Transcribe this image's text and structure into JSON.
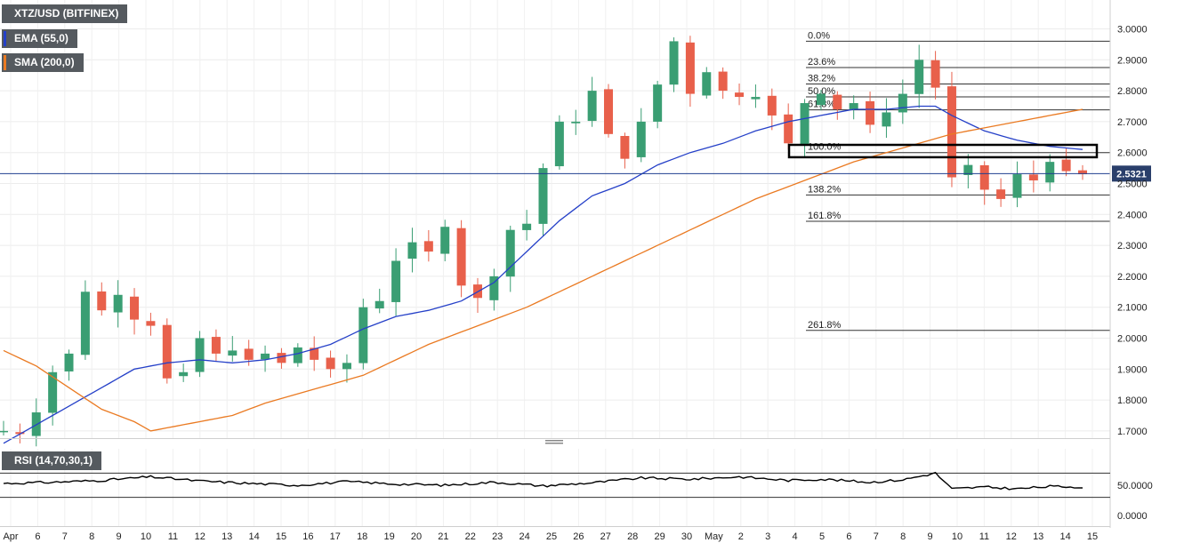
{
  "legends": {
    "symbol": "XTZ/USD (BITFINEX)",
    "ema": "EMA (55,0)",
    "sma": "SMA (200,0)",
    "rsi": "RSI (14,70,30,1)"
  },
  "colors": {
    "up": "#3a9e73",
    "down": "#e8604b",
    "ema": "#2540c8",
    "sma": "#ea7a22",
    "rsi": "#000000",
    "price_line": "#1f3f8f",
    "price_badge": "#2a3f6b"
  },
  "chart_data": [
    {
      "type": "candlestick",
      "title": "XTZ/USD (BITFINEX)",
      "ylim": [
        1.68,
        3.07
      ],
      "y_ticks": [
        "3.0000",
        "2.9000",
        "2.8000",
        "2.7000",
        "2.6000",
        "2.5000",
        "2.4000",
        "2.3000",
        "2.2000",
        "2.1000",
        "2.0000",
        "1.9000",
        "1.8000",
        "1.7000"
      ],
      "x_ticks": [
        "Apr",
        "6",
        "7",
        "8",
        "9",
        "10",
        "11",
        "12",
        "13",
        "14",
        "15",
        "16",
        "17",
        "18",
        "19",
        "20",
        "21",
        "22",
        "23",
        "24",
        "25",
        "26",
        "27",
        "28",
        "29",
        "30",
        "May",
        "2",
        "3",
        "4",
        "5",
        "6",
        "7",
        "8",
        "9",
        "10",
        "11",
        "12",
        "13",
        "14",
        "15"
      ],
      "current_price": "2.5321",
      "fib_levels": [
        {
          "label": "0.0%",
          "value": 2.96
        },
        {
          "label": "23.6%",
          "value": 2.875
        },
        {
          "label": "38.2%",
          "value": 2.822
        },
        {
          "label": "50.0%",
          "value": 2.78
        },
        {
          "label": "61.8%",
          "value": 2.738
        },
        {
          "label": "100.0%",
          "value": 2.6
        },
        {
          "label": "138.2%",
          "value": 2.463
        },
        {
          "label": "161.8%",
          "value": 2.378
        },
        {
          "label": "261.8%",
          "value": 2.025
        }
      ],
      "resistance_zone": [
        2.585,
        2.625
      ],
      "close_anchors": [
        [
          0,
          1.7
        ],
        [
          1,
          1.69
        ],
        [
          2,
          1.76
        ],
        [
          3,
          1.89
        ],
        [
          4,
          1.95
        ],
        [
          5,
          2.15
        ],
        [
          6,
          2.09
        ],
        [
          7,
          2.14
        ],
        [
          8,
          2.06
        ],
        [
          9,
          2.04
        ],
        [
          10,
          1.87
        ],
        [
          11,
          1.89
        ],
        [
          12,
          2.0
        ],
        [
          13,
          1.95
        ],
        [
          14,
          1.96
        ],
        [
          15,
          1.93
        ],
        [
          16,
          1.95
        ],
        [
          17,
          1.92
        ],
        [
          18,
          1.97
        ],
        [
          19,
          1.93
        ],
        [
          20,
          1.9
        ],
        [
          21,
          1.92
        ],
        [
          22,
          2.1
        ],
        [
          23,
          2.12
        ],
        [
          24,
          2.25
        ],
        [
          25,
          2.31
        ],
        [
          26,
          2.28
        ],
        [
          27,
          2.36
        ],
        [
          28,
          2.17
        ],
        [
          29,
          2.13
        ],
        [
          30,
          2.2
        ],
        [
          31,
          2.35
        ],
        [
          32,
          2.37
        ],
        [
          33,
          2.55
        ],
        [
          34,
          2.7
        ],
        [
          35,
          2.7
        ],
        [
          36,
          2.8
        ],
        [
          37,
          2.66
        ],
        [
          38,
          2.58
        ],
        [
          39,
          2.7
        ],
        [
          40,
          2.82
        ],
        [
          41,
          2.96
        ],
        [
          42,
          2.79
        ],
        [
          43,
          2.86
        ],
        [
          44,
          2.8
        ],
        [
          45,
          2.78
        ],
        [
          46,
          2.78
        ],
        [
          47,
          2.72
        ],
        [
          48,
          2.63
        ],
        [
          49,
          2.76
        ],
        [
          50,
          2.79
        ],
        [
          51,
          2.74
        ],
        [
          52,
          2.76
        ],
        [
          53,
          2.69
        ],
        [
          54,
          2.73
        ],
        [
          55,
          2.79
        ],
        [
          56,
          2.9
        ],
        [
          57,
          2.81
        ],
        [
          58,
          2.52
        ],
        [
          59,
          2.56
        ],
        [
          60,
          2.48
        ],
        [
          61,
          2.45
        ],
        [
          62,
          2.53
        ],
        [
          63,
          2.51
        ],
        [
          64,
          2.57
        ],
        [
          65,
          2.54
        ],
        [
          66,
          2.53
        ]
      ],
      "ema_anchors": [
        [
          0,
          1.66
        ],
        [
          2,
          1.72
        ],
        [
          4,
          1.78
        ],
        [
          6,
          1.84
        ],
        [
          8,
          1.9
        ],
        [
          10,
          1.92
        ],
        [
          12,
          1.93
        ],
        [
          14,
          1.92
        ],
        [
          16,
          1.93
        ],
        [
          18,
          1.95
        ],
        [
          20,
          1.98
        ],
        [
          22,
          2.03
        ],
        [
          24,
          2.07
        ],
        [
          26,
          2.09
        ],
        [
          28,
          2.12
        ],
        [
          30,
          2.18
        ],
        [
          32,
          2.28
        ],
        [
          34,
          2.38
        ],
        [
          36,
          2.46
        ],
        [
          38,
          2.5
        ],
        [
          40,
          2.56
        ],
        [
          42,
          2.6
        ],
        [
          44,
          2.63
        ],
        [
          46,
          2.67
        ],
        [
          48,
          2.7
        ],
        [
          50,
          2.72
        ],
        [
          52,
          2.74
        ],
        [
          54,
          2.74
        ],
        [
          56,
          2.75
        ],
        [
          57,
          2.75
        ],
        [
          58,
          2.72
        ],
        [
          60,
          2.67
        ],
        [
          62,
          2.64
        ],
        [
          64,
          2.62
        ],
        [
          66,
          2.61
        ]
      ],
      "sma_anchors": [
        [
          0,
          1.96
        ],
        [
          2,
          1.91
        ],
        [
          4,
          1.84
        ],
        [
          6,
          1.77
        ],
        [
          8,
          1.73
        ],
        [
          9,
          1.7
        ],
        [
          10,
          1.71
        ],
        [
          12,
          1.73
        ],
        [
          14,
          1.75
        ],
        [
          16,
          1.79
        ],
        [
          18,
          1.82
        ],
        [
          20,
          1.85
        ],
        [
          22,
          1.88
        ],
        [
          24,
          1.93
        ],
        [
          26,
          1.98
        ],
        [
          28,
          2.02
        ],
        [
          30,
          2.06
        ],
        [
          32,
          2.1
        ],
        [
          34,
          2.15
        ],
        [
          36,
          2.2
        ],
        [
          38,
          2.25
        ],
        [
          40,
          2.3
        ],
        [
          42,
          2.35
        ],
        [
          44,
          2.4
        ],
        [
          46,
          2.45
        ],
        [
          48,
          2.49
        ],
        [
          50,
          2.53
        ],
        [
          52,
          2.57
        ],
        [
          54,
          2.6
        ],
        [
          56,
          2.63
        ],
        [
          58,
          2.66
        ],
        [
          60,
          2.68
        ],
        [
          62,
          2.7
        ],
        [
          64,
          2.72
        ],
        [
          66,
          2.74
        ]
      ]
    },
    {
      "type": "line",
      "title": "RSI (14,70,30,1)",
      "ylim": [
        0,
        100
      ],
      "y_ticks": [
        "50.0000",
        "0.0000"
      ],
      "upper_band": 70,
      "lower_band": 30,
      "rsi_anchors": [
        [
          0,
          53
        ],
        [
          3,
          55
        ],
        [
          6,
          58
        ],
        [
          9,
          64
        ],
        [
          12,
          57
        ],
        [
          15,
          53
        ],
        [
          18,
          50
        ],
        [
          21,
          56
        ],
        [
          24,
          52
        ],
        [
          27,
          50
        ],
        [
          30,
          55
        ],
        [
          33,
          49
        ],
        [
          36,
          54
        ],
        [
          39,
          62
        ],
        [
          42,
          60
        ],
        [
          45,
          64
        ],
        [
          48,
          58
        ],
        [
          50,
          60
        ],
        [
          53,
          55
        ],
        [
          55,
          59
        ],
        [
          57,
          70
        ],
        [
          58,
          44
        ],
        [
          60,
          47
        ],
        [
          62,
          44
        ],
        [
          64,
          48
        ],
        [
          66,
          47
        ]
      ]
    }
  ]
}
